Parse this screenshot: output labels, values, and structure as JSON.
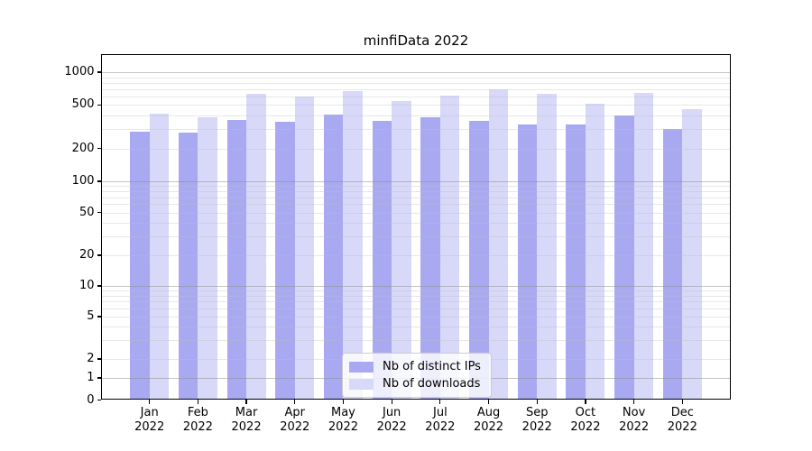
{
  "title": "minfiData 2022",
  "chart_data": {
    "type": "bar",
    "title": "minfiData 2022",
    "categories": [
      "Jan 2022",
      "Feb 2022",
      "Mar 2022",
      "Apr 2022",
      "May 2022",
      "Jun 2022",
      "Jul 2022",
      "Aug 2022",
      "Sep 2022",
      "Oct 2022",
      "Nov 2022",
      "Dec 2022"
    ],
    "x_months": [
      "Jan",
      "Feb",
      "Mar",
      "Apr",
      "May",
      "Jun",
      "Jul",
      "Aug",
      "Sep",
      "Oct",
      "Nov",
      "Dec"
    ],
    "x_year": "2022",
    "series": [
      {
        "name": "Nb of distinct IPs",
        "color": "#a9a9f1",
        "values": [
          285,
          278,
          365,
          353,
          410,
          358,
          386,
          358,
          330,
          330,
          400,
          301
        ]
      },
      {
        "name": "Nb of downloads",
        "color": "#d8d8f9",
        "values": [
          420,
          385,
          630,
          595,
          665,
          540,
          610,
          695,
          635,
          515,
          650,
          460
        ]
      }
    ],
    "yscale": "symlog",
    "yticks": [
      0,
      1,
      2,
      5,
      10,
      20,
      50,
      100,
      200,
      500,
      1000
    ],
    "ylim": [
      0,
      1450
    ],
    "grid": "horizontal major and minor gridlines",
    "legend_position": "inside lower-center",
    "xlabel": "",
    "ylabel": ""
  },
  "colors": {
    "background": "#ffffff",
    "bar_ips": "#a9a9f1",
    "bar_downloads": "#d8d8f9",
    "grid_major": "rgba(140,140,140,0.50)",
    "grid_minor": "rgba(190,190,190,0.35)",
    "axis": "#000000",
    "legend_border": "#cccccc"
  }
}
